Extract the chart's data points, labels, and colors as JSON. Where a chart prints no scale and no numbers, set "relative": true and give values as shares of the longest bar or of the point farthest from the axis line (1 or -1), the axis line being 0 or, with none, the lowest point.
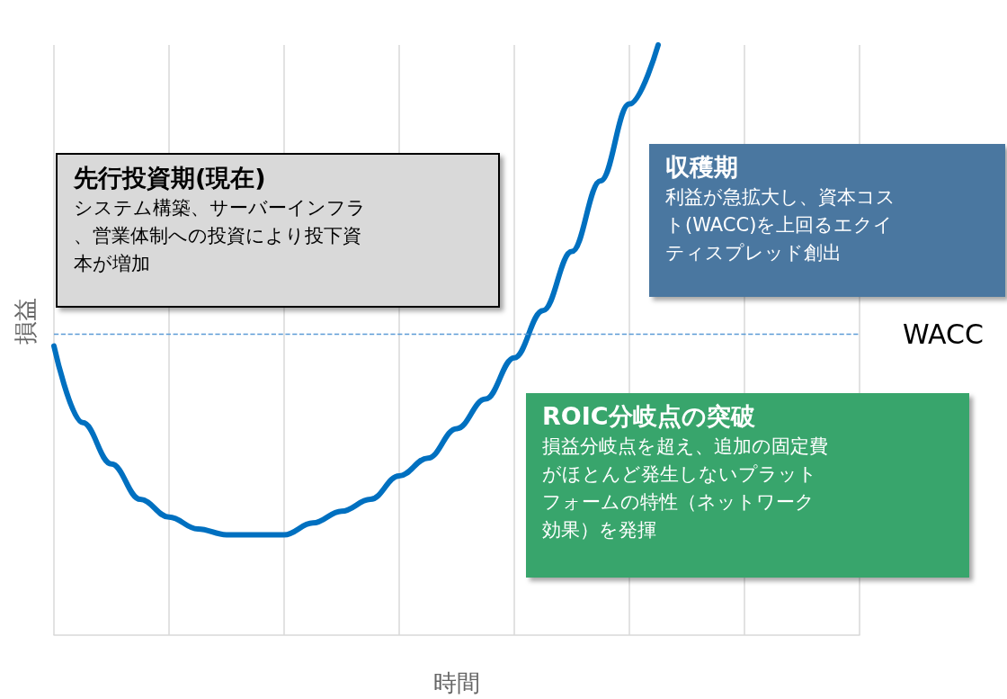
{
  "chart_data": {
    "type": "line",
    "relative": true,
    "xlabel": "時間",
    "ylabel": "損益",
    "categories": [
      null,
      null,
      null,
      null,
      null,
      null,
      null,
      null,
      null,
      null,
      null,
      null,
      null,
      null,
      null,
      null,
      null,
      null,
      null,
      null,
      null,
      null,
      null,
      null,
      null,
      null,
      null,
      null,
      null
    ],
    "series": [
      {
        "color": "#0070c0",
        "values": [
          0.49,
          0.36,
          0.29,
          0.23,
          0.2,
          0.18,
          0.17,
          0.17,
          0.17,
          0.19,
          0.21,
          0.23,
          0.27,
          0.3,
          0.35,
          0.4,
          0.47,
          0.55,
          0.65,
          0.77,
          0.9,
          1,
          null,
          null,
          null,
          null,
          null,
          null,
          null
        ]
      }
    ],
    "ref_lines": [
      {
        "axis": "y",
        "value": 0.51,
        "label": "WACC",
        "color": "#5b9bd5",
        "line_style": "dashed"
      }
    ],
    "annotations": [
      "先行投資期(現在)",
      "システム構築、サーバーインフラ、営業体制への投資により投下資本が増加",
      "収穫期",
      "利益が急拡大し、資本コスト(WACC)を上回るエクイティスプレッド創出",
      "ROIC分岐点の突破",
      "損益分岐点を超え、追加の固定費がほとんど発生しないプラットフォームの特性（ネットワーク効果）を発揮"
    ],
    "grid": "x",
    "marker": "none",
    "line_style": "solid"
  }
}
